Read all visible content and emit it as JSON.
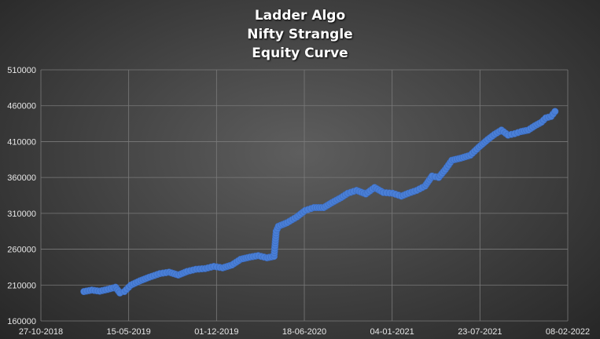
{
  "chart_data": {
    "type": "scatter",
    "title_lines": [
      "Ladder Algo",
      "Nifty Strangle",
      "Equity Curve"
    ],
    "xlabel": "",
    "ylabel": "",
    "xlim": [
      "2018-10-27",
      "2022-02-08"
    ],
    "ylim": [
      160000,
      510000
    ],
    "x_ticks": [
      "27-10-2018",
      "15-05-2019",
      "01-12-2019",
      "18-06-2020",
      "04-01-2021",
      "23-07-2021",
      "08-02-2022"
    ],
    "y_ticks": [
      "160000",
      "210000",
      "260000",
      "310000",
      "360000",
      "410000",
      "460000",
      "510000"
    ],
    "grid": true,
    "legend": "none",
    "marker_color": "#4a7fd6",
    "series": [
      {
        "points": [
          [
            "2019-02-02",
            201000
          ],
          [
            "2019-02-20",
            203000
          ],
          [
            "2019-03-10",
            201500
          ],
          [
            "2019-03-28",
            204000
          ],
          [
            "2019-04-15",
            207000
          ],
          [
            "2019-04-25",
            199000
          ],
          [
            "2019-05-05",
            201000
          ],
          [
            "2019-05-20",
            210000
          ],
          [
            "2019-06-10",
            216000
          ],
          [
            "2019-07-01",
            221000
          ],
          [
            "2019-07-25",
            226000
          ],
          [
            "2019-08-15",
            228000
          ],
          [
            "2019-09-05",
            224000
          ],
          [
            "2019-09-25",
            229000
          ],
          [
            "2019-10-15",
            232000
          ],
          [
            "2019-11-05",
            233000
          ],
          [
            "2019-11-25",
            236000
          ],
          [
            "2019-12-15",
            234000
          ],
          [
            "2020-01-05",
            238000
          ],
          [
            "2020-01-25",
            246000
          ],
          [
            "2020-02-15",
            249000
          ],
          [
            "2020-03-05",
            251000
          ],
          [
            "2020-03-25",
            248000
          ],
          [
            "2020-04-10",
            250000
          ],
          [
            "2020-04-15",
            285000
          ],
          [
            "2020-04-20",
            292000
          ],
          [
            "2020-05-10",
            297000
          ],
          [
            "2020-06-01",
            305000
          ],
          [
            "2020-06-20",
            314000
          ],
          [
            "2020-07-10",
            318000
          ],
          [
            "2020-08-01",
            318000
          ],
          [
            "2020-08-20",
            325000
          ],
          [
            "2020-09-10",
            332000
          ],
          [
            "2020-09-25",
            338000
          ],
          [
            "2020-10-15",
            342000
          ],
          [
            "2020-11-05",
            337000
          ],
          [
            "2020-11-25",
            346000
          ],
          [
            "2020-12-15",
            339000
          ],
          [
            "2021-01-05",
            338000
          ],
          [
            "2021-01-25",
            334000
          ],
          [
            "2021-02-10",
            338000
          ],
          [
            "2021-03-01",
            342000
          ],
          [
            "2021-03-20",
            348000
          ],
          [
            "2021-04-05",
            362000
          ],
          [
            "2021-04-20",
            360000
          ],
          [
            "2021-05-05",
            371000
          ],
          [
            "2021-05-20",
            384000
          ],
          [
            "2021-06-10",
            387000
          ],
          [
            "2021-07-01",
            391000
          ],
          [
            "2021-07-20",
            402000
          ],
          [
            "2021-08-10",
            413000
          ],
          [
            "2021-08-25",
            420000
          ],
          [
            "2021-09-10",
            426000
          ],
          [
            "2021-09-25",
            419000
          ],
          [
            "2021-10-10",
            421000
          ],
          [
            "2021-10-25",
            424000
          ],
          [
            "2021-11-10",
            426000
          ],
          [
            "2021-11-25",
            432000
          ],
          [
            "2021-12-10",
            437000
          ],
          [
            "2021-12-20",
            443000
          ],
          [
            "2022-01-01",
            445000
          ],
          [
            "2022-01-10",
            452000
          ]
        ]
      }
    ]
  }
}
